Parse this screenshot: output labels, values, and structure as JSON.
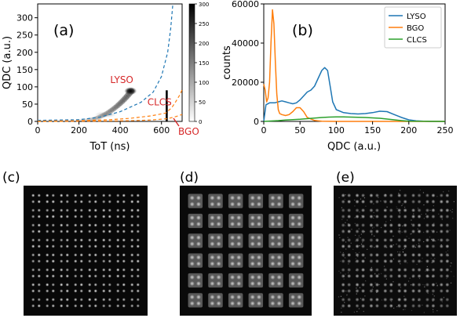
{
  "colors": {
    "lyso": "#1f77b4",
    "bgo": "#ff7f0e",
    "clcs": "#2ca02c",
    "red_label": "#d62728"
  },
  "chart_data": [
    {
      "panel": "(a)",
      "type": "heatmap",
      "xlabel": "ToT (ns)",
      "ylabel": "QDC (a.u.)",
      "xlim": [
        0,
        700
      ],
      "ylim": [
        0,
        340
      ],
      "xticks": [
        "0",
        "200",
        "400",
        "600"
      ],
      "yticks": [
        "0",
        "50",
        "100",
        "150",
        "200",
        "250",
        "300"
      ],
      "colorbar_ticks": [
        "0",
        "50",
        "100",
        "150",
        "200",
        "250",
        "300"
      ],
      "colorbar_range": [
        0,
        300
      ],
      "annotations": [
        {
          "text": "LYSO",
          "x": 420,
          "y": 120
        },
        {
          "text": "CLCS",
          "x": 600,
          "y": 55
        },
        {
          "text": "BGO",
          "x": 655,
          "y": -22
        }
      ],
      "blobs": [
        {
          "label": "LYSO cluster",
          "x": 450,
          "y": 88,
          "intensity": 300
        },
        {
          "label": "LYSO tail",
          "x": 330,
          "y": 20,
          "intensity": 60
        },
        {
          "label": "CLCS band",
          "x": 625,
          "y": 30,
          "intensity": 200
        }
      ],
      "boundaries": [
        {
          "name": "LYSO",
          "color": "#1f77b4",
          "points": [
            [
              0,
              3
            ],
            [
              200,
              5
            ],
            [
              300,
              12
            ],
            [
              400,
              28
            ],
            [
              500,
              55
            ],
            [
              560,
              85
            ],
            [
              600,
              130
            ],
            [
              630,
              200
            ],
            [
              645,
              270
            ],
            [
              655,
              340
            ]
          ]
        },
        {
          "name": "CLCS",
          "color": "#ff7f0e",
          "points": [
            [
              0,
              1
            ],
            [
              200,
              2
            ],
            [
              350,
              5
            ],
            [
              450,
              9
            ],
            [
              550,
              16
            ],
            [
              620,
              24
            ],
            [
              650,
              40
            ],
            [
              670,
              58
            ],
            [
              690,
              78
            ],
            [
              700,
              92
            ]
          ]
        },
        {
          "name": "BGO",
          "color": "#ff7f0e",
          "points": [
            [
              0,
              0
            ],
            [
              300,
              1
            ],
            [
              450,
              2
            ],
            [
              550,
              4
            ],
            [
              630,
              8
            ],
            [
              670,
              14
            ],
            [
              700,
              20
            ]
          ]
        }
      ]
    },
    {
      "panel": "(b)",
      "type": "line",
      "xlabel": "QDC (a.u.)",
      "ylabel": "counts",
      "xlim": [
        0,
        250
      ],
      "ylim": [
        0,
        60000
      ],
      "xticks": [
        "0",
        "50",
        "100",
        "150",
        "200",
        "250"
      ],
      "yticks": [
        "0",
        "20000",
        "40000",
        "60000"
      ],
      "legend": "top-right",
      "series": [
        {
          "name": "LYSO",
          "color": "#1f77b4",
          "x": [
            0,
            3,
            8,
            15,
            20,
            25,
            30,
            35,
            40,
            45,
            50,
            55,
            60,
            65,
            70,
            75,
            80,
            84,
            88,
            92,
            95,
            100,
            110,
            120,
            130,
            140,
            150,
            160,
            170,
            180,
            190,
            200,
            210,
            220,
            230,
            250
          ],
          "y": [
            0,
            8500,
            9500,
            9500,
            10000,
            10500,
            10000,
            9500,
            9000,
            9500,
            11000,
            13000,
            15000,
            16000,
            18000,
            22000,
            26000,
            27500,
            26000,
            17000,
            10000,
            6000,
            4500,
            4000,
            3800,
            4000,
            4500,
            5200,
            5000,
            3500,
            2000,
            800,
            300,
            100,
            0,
            0
          ]
        },
        {
          "name": "BGO",
          "color": "#ff7f0e",
          "x": [
            0,
            2,
            4,
            6,
            8,
            10,
            12,
            14,
            16,
            18,
            20,
            22,
            25,
            30,
            35,
            40,
            45,
            50,
            55,
            60,
            70,
            80,
            100,
            250
          ],
          "y": [
            19000,
            16000,
            10000,
            12000,
            20000,
            40000,
            57000,
            50000,
            30000,
            14000,
            6000,
            4000,
            3500,
            3000,
            3500,
            5000,
            7000,
            7000,
            5000,
            2000,
            500,
            100,
            0,
            0
          ]
        },
        {
          "name": "CLCS",
          "color": "#2ca02c",
          "x": [
            0,
            10,
            20,
            30,
            40,
            50,
            60,
            70,
            80,
            90,
            100,
            110,
            120,
            130,
            140,
            150,
            160,
            170,
            180,
            190,
            200,
            250
          ],
          "y": [
            0,
            200,
            400,
            700,
            900,
            1100,
            1400,
            1700,
            2000,
            2200,
            2300,
            2300,
            2200,
            2100,
            2000,
            1800,
            1600,
            1200,
            800,
            400,
            100,
            0
          ]
        }
      ]
    }
  ],
  "panels": {
    "a": {
      "label": "(a)",
      "annotations": [
        "LYSO",
        "CLCS",
        "BGO"
      ]
    },
    "b": {
      "label": "(b)"
    },
    "c": {
      "label": "(c)",
      "grid": 8
    },
    "d": {
      "label": "(d)",
      "grid": 6
    },
    "e": {
      "label": "(e)",
      "grid": 8
    }
  }
}
